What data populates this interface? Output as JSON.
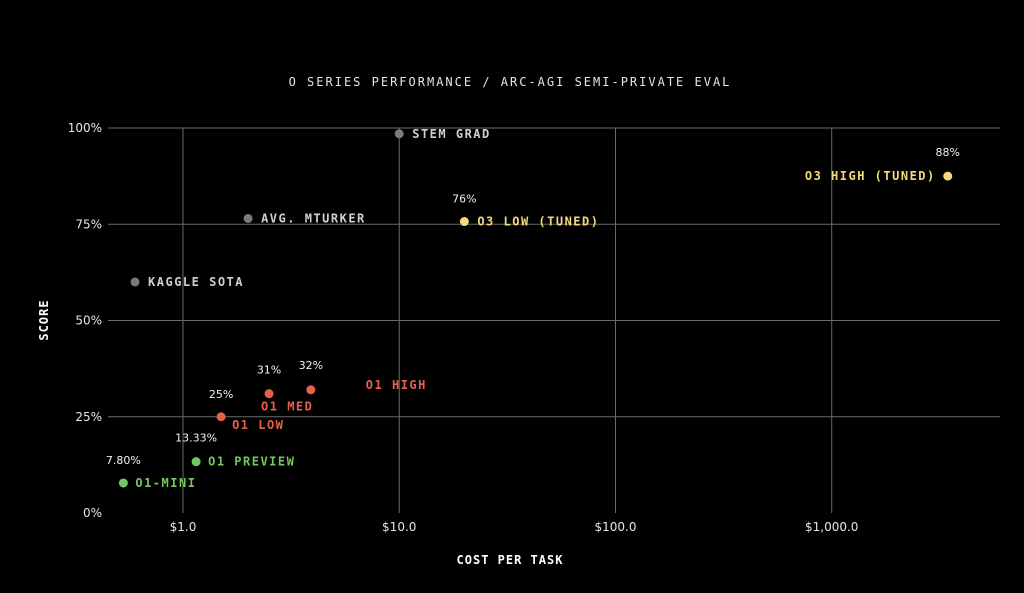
{
  "chart_data": {
    "type": "scatter",
    "title": "O SERIES PERFORMANCE / ARC-AGI SEMI-PRIVATE EVAL",
    "xlabel": "COST PER TASK",
    "ylabel": "SCORE",
    "x_scale": "log",
    "xlim": [
      0.45,
      6000
    ],
    "ylim": [
      0,
      100
    ],
    "x_ticks": [
      {
        "value": 1,
        "label": "$1.0"
      },
      {
        "value": 10,
        "label": "$10.0"
      },
      {
        "value": 100,
        "label": "$100.0"
      },
      {
        "value": 1000,
        "label": "$1,000.0"
      }
    ],
    "y_ticks": [
      {
        "value": 0,
        "label": "0%"
      },
      {
        "value": 25,
        "label": "25%"
      },
      {
        "value": 50,
        "label": "50%"
      },
      {
        "value": 75,
        "label": "75%"
      },
      {
        "value": 100,
        "label": "100%"
      }
    ],
    "grid": true,
    "colors": {
      "gray": "#7a7a7a",
      "yellow": "#f5d97a",
      "red": "#e8604c",
      "green": "#73c960",
      "label_gray": "#cfcfcf"
    },
    "points": [
      {
        "label": "STEM GRAD",
        "x": 10,
        "y": 98.5,
        "color": "gray",
        "value_label": ""
      },
      {
        "label": "AVG. MTURKER",
        "x": 2.0,
        "y": 76.5,
        "color": "gray",
        "value_label": ""
      },
      {
        "label": "KAGGLE SOTA",
        "x": 0.6,
        "y": 60,
        "color": "gray",
        "value_label": ""
      },
      {
        "label": "O3 LOW (TUNED)",
        "x": 20,
        "y": 75.7,
        "color": "yellow",
        "value_label": "76%"
      },
      {
        "label": "O3 HIGH (TUNED)",
        "x": 3440,
        "y": 87.5,
        "color": "yellow",
        "value_label": "88%"
      },
      {
        "label": "O1 HIGH",
        "x": 3.9,
        "y": 32,
        "color": "red",
        "value_label": "32%"
      },
      {
        "label": "O1 MED",
        "x": 2.5,
        "y": 31,
        "color": "red",
        "value_label": "31%"
      },
      {
        "label": "O1 LOW",
        "x": 1.5,
        "y": 25,
        "color": "red",
        "value_label": "25%"
      },
      {
        "label": "O1 PREVIEW",
        "x": 1.15,
        "y": 13.33,
        "color": "green",
        "value_label": "13.33%"
      },
      {
        "label": "O1-MINI",
        "x": 0.53,
        "y": 7.8,
        "color": "green",
        "value_label": "7.80%"
      }
    ]
  }
}
